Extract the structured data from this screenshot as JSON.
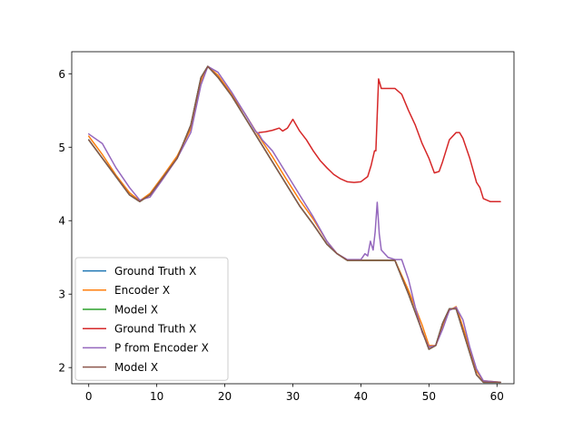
{
  "chart_data": {
    "type": "line",
    "title": "",
    "xlabel": "",
    "ylabel": "",
    "xlim": [
      -2.5,
      62.5
    ],
    "ylim": [
      1.78,
      6.3
    ],
    "xticks": [
      0,
      10,
      20,
      30,
      40,
      50,
      60
    ],
    "yticks": [
      2,
      3,
      4,
      5,
      6
    ],
    "grid": false,
    "legend_position": "lower-left",
    "series": [
      {
        "name": "Ground Truth X",
        "color": "#1f77b4",
        "x": [
          0,
          2,
          4,
          6,
          7.5,
          9,
          11,
          13,
          15,
          16.5,
          17.5,
          19,
          21,
          23,
          25,
          27,
          29,
          31,
          33,
          35,
          36.5,
          38,
          40,
          45,
          47,
          49,
          50,
          51,
          52,
          53,
          54,
          55,
          56,
          57,
          58,
          60.5
        ],
        "y": [
          5.1,
          4.85,
          4.6,
          4.35,
          4.26,
          4.35,
          4.6,
          4.85,
          5.3,
          5.95,
          6.1,
          5.95,
          5.7,
          5.4,
          5.1,
          4.8,
          4.5,
          4.2,
          3.95,
          3.68,
          3.55,
          3.46,
          3.46,
          3.46,
          3.0,
          2.5,
          2.25,
          2.3,
          2.6,
          2.8,
          2.8,
          2.5,
          2.2,
          1.9,
          1.8,
          1.8
        ]
      },
      {
        "name": "Encoder X",
        "color": "#ff7f0e",
        "x": [
          0,
          2,
          4,
          6,
          7.5,
          9,
          11,
          13,
          15,
          16.5,
          17.5,
          19,
          21,
          23,
          25,
          27,
          29,
          31,
          33,
          35,
          36.5,
          38,
          40,
          45,
          47,
          49,
          50,
          51,
          52,
          53,
          54,
          55,
          56,
          57,
          58,
          60.5
        ],
        "y": [
          5.15,
          4.9,
          4.62,
          4.38,
          4.27,
          4.37,
          4.62,
          4.88,
          5.25,
          5.9,
          6.1,
          5.98,
          5.72,
          5.45,
          5.15,
          4.87,
          4.57,
          4.28,
          4.02,
          3.72,
          3.55,
          3.46,
          3.46,
          3.46,
          3.05,
          2.58,
          2.3,
          2.3,
          2.55,
          2.78,
          2.83,
          2.55,
          2.25,
          1.95,
          1.82,
          1.8
        ]
      },
      {
        "name": "Model X",
        "color": "#2ca02c",
        "x": [
          0,
          2,
          4,
          6,
          7.5,
          9,
          11,
          13,
          15,
          16.5,
          17.5,
          19,
          21,
          23,
          25,
          27,
          29,
          31,
          33,
          35,
          36.5,
          38,
          40,
          45,
          47,
          49,
          50,
          51,
          52,
          53,
          54,
          55,
          56,
          57,
          58,
          60.5
        ],
        "y": [
          5.1,
          4.85,
          4.6,
          4.35,
          4.26,
          4.35,
          4.6,
          4.85,
          5.3,
          5.95,
          6.1,
          5.95,
          5.7,
          5.4,
          5.1,
          4.8,
          4.5,
          4.2,
          3.95,
          3.68,
          3.55,
          3.46,
          3.46,
          3.46,
          3.0,
          2.5,
          2.25,
          2.3,
          2.6,
          2.8,
          2.8,
          2.5,
          2.2,
          1.9,
          1.8,
          1.8
        ]
      },
      {
        "name": "Ground Truth X",
        "color": "#d62728",
        "x": [
          25,
          26,
          27,
          28,
          28.5,
          29.2,
          30,
          31,
          32,
          33,
          34,
          35,
          36,
          37,
          38,
          39,
          40,
          41,
          41.5,
          42,
          42.2,
          42.6,
          43,
          44,
          45,
          46,
          47,
          48,
          49,
          50,
          50.8,
          51.5,
          52,
          53,
          54,
          54.5,
          55,
          56,
          57,
          57.5,
          58,
          59,
          60.5
        ],
        "y": [
          5.2,
          5.21,
          5.23,
          5.26,
          5.22,
          5.26,
          5.38,
          5.22,
          5.1,
          4.95,
          4.82,
          4.72,
          4.63,
          4.57,
          4.53,
          4.52,
          4.53,
          4.6,
          4.75,
          4.95,
          4.95,
          5.93,
          5.8,
          5.8,
          5.8,
          5.72,
          5.5,
          5.3,
          5.05,
          4.85,
          4.65,
          4.67,
          4.8,
          5.1,
          5.2,
          5.2,
          5.12,
          4.85,
          4.52,
          4.45,
          4.3,
          4.26,
          4.26
        ]
      },
      {
        "name": "P from Encoder X",
        "color": "#9467bd",
        "x": [
          0,
          2,
          4,
          6,
          7.5,
          9,
          11,
          13,
          15,
          16.5,
          17.5,
          19,
          21,
          23,
          24.5,
          25,
          25.5,
          27,
          28,
          29,
          30,
          31,
          33,
          35,
          36.5,
          38,
          40,
          40.6,
          41,
          41.4,
          41.8,
          42.1,
          42.4,
          42.7,
          43,
          44,
          45,
          46,
          47,
          48,
          49,
          50,
          51,
          52,
          53,
          54,
          55,
          56,
          57,
          58,
          60.5
        ],
        "y": [
          5.18,
          5.05,
          4.72,
          4.45,
          4.28,
          4.32,
          4.58,
          4.85,
          5.2,
          5.85,
          6.1,
          6.02,
          5.75,
          5.45,
          5.22,
          5.18,
          5.1,
          4.95,
          4.8,
          4.65,
          4.5,
          4.35,
          4.05,
          3.72,
          3.55,
          3.47,
          3.47,
          3.55,
          3.52,
          3.72,
          3.6,
          3.85,
          4.25,
          3.82,
          3.6,
          3.5,
          3.47,
          3.47,
          3.2,
          2.82,
          2.48,
          2.28,
          2.3,
          2.52,
          2.78,
          2.82,
          2.65,
          2.28,
          1.98,
          1.82,
          1.8
        ]
      },
      {
        "name": "Model X",
        "color": "#8c564b",
        "x": [
          0,
          2,
          4,
          6,
          7.5,
          9,
          11,
          13,
          15,
          16.5,
          17.5,
          19,
          21,
          23,
          25,
          27,
          29,
          31,
          33,
          35,
          36.5,
          38,
          40,
          45,
          47,
          49,
          50,
          51,
          52,
          53,
          54,
          55,
          56,
          57,
          58,
          60.5
        ],
        "y": [
          5.1,
          4.85,
          4.6,
          4.35,
          4.26,
          4.35,
          4.6,
          4.85,
          5.3,
          5.95,
          6.1,
          5.95,
          5.7,
          5.4,
          5.1,
          4.8,
          4.5,
          4.2,
          3.95,
          3.68,
          3.55,
          3.46,
          3.46,
          3.46,
          3.0,
          2.5,
          2.25,
          2.3,
          2.6,
          2.8,
          2.8,
          2.5,
          2.2,
          1.9,
          1.8,
          1.8
        ]
      }
    ]
  }
}
